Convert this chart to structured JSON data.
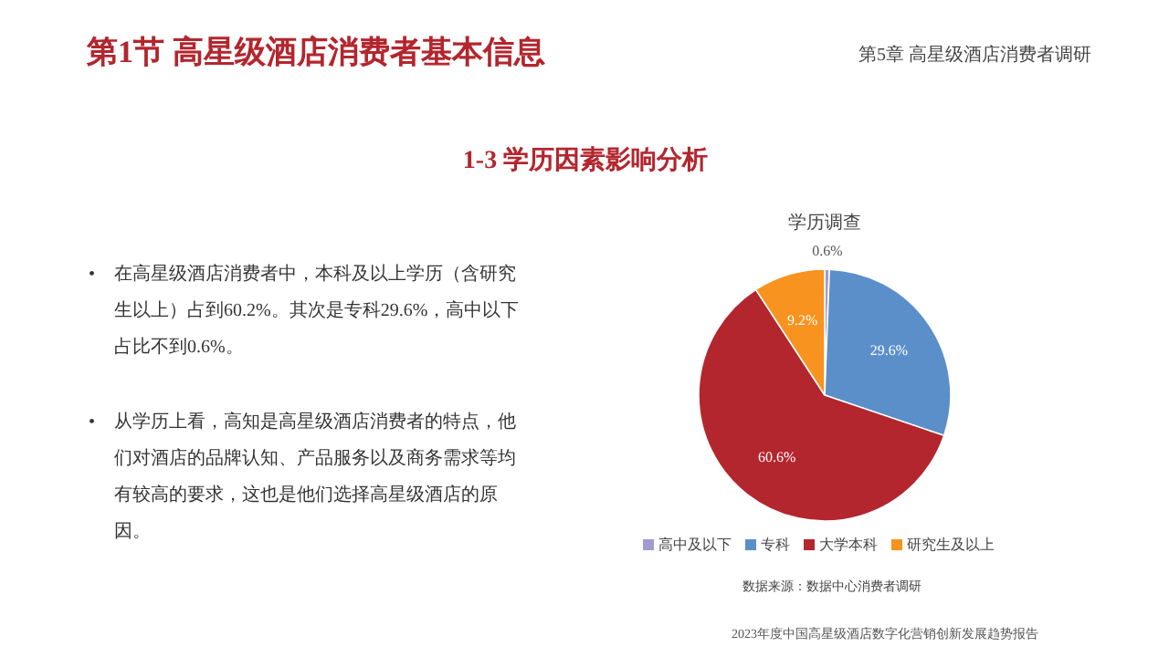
{
  "chart_data": {
    "type": "pie",
    "title": "学历调查",
    "categories": [
      "高中及以下",
      "专科",
      "大学本科",
      "研究生及以上"
    ],
    "values": [
      0.6,
      29.6,
      60.6,
      9.2
    ],
    "colors": [
      "#a29bd2",
      "#5b8fca",
      "#b3262e",
      "#f7931e"
    ],
    "value_labels": [
      "0.6%",
      "29.6%",
      "60.6%",
      "9.2%"
    ],
    "legend": "bottom",
    "annotations": [
      "第1节 高星级酒店消费者基本信息",
      "第5章 高星级酒店消费者调研",
      "1-3 学历因素影响分析",
      "•",
      "在高星级酒店消费者中，本科及以上学历（含研究",
      "生以上）占到60.2%。其次是专科29.6%，高中以下",
      "占比不到0.6%。",
      "•",
      "从学历上看，高知是高星级酒店消费者的特点，他",
      "们对酒店的品牌认知、产品服务以及商务需求等均",
      "有较高的要求，这也是他们选择高星级酒店的原",
      "因。",
      "数据来源：数据中心消费者调研",
      "2023年度中国高星级酒店数字化营销创新发展趋势报告"
    ]
  }
}
